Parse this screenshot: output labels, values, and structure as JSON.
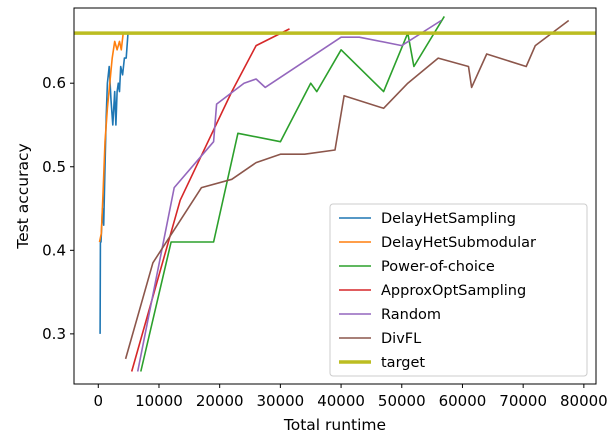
{
  "chart_data": {
    "type": "line",
    "xlabel": "Total runtime",
    "ylabel": "Test accuracy",
    "xlim": [
      -4000,
      82000
    ],
    "ylim": [
      0.24,
      0.69
    ],
    "xticks": [
      0,
      10000,
      20000,
      30000,
      40000,
      50000,
      60000,
      70000,
      80000
    ],
    "xtick_labels": [
      "0",
      "10000",
      "20000",
      "30000",
      "40000",
      "50000",
      "60000",
      "70000",
      "80000"
    ],
    "yticks": [
      0.3,
      0.4,
      0.5,
      0.6
    ],
    "ytick_labels": [
      "0.3",
      "0.4",
      "0.5",
      "0.6"
    ],
    "grid": false,
    "legend_position": "lower-right",
    "series": [
      {
        "name": "DelayHetSampling",
        "color": "#1f77b4",
        "x": [
          300,
          350,
          450,
          700,
          900,
          1100,
          1300,
          1500,
          1800,
          2100,
          2400,
          2700,
          2900,
          3100,
          3300,
          3500,
          3700,
          4000,
          4300,
          4600,
          4900
        ],
        "y": [
          0.3,
          0.41,
          0.41,
          0.45,
          0.43,
          0.5,
          0.56,
          0.6,
          0.62,
          0.58,
          0.55,
          0.59,
          0.55,
          0.59,
          0.6,
          0.59,
          0.62,
          0.61,
          0.63,
          0.63,
          0.66
        ]
      },
      {
        "name": "DelayHetSubmodular",
        "color": "#ff7f0e",
        "x": [
          200,
          500,
          800,
          1100,
          1500,
          1900,
          2300,
          2700,
          3100,
          3500,
          3800,
          4100,
          4500
        ],
        "y": [
          0.41,
          0.42,
          0.47,
          0.53,
          0.57,
          0.6,
          0.63,
          0.65,
          0.64,
          0.65,
          0.64,
          0.66,
          0.66
        ]
      },
      {
        "name": "Power-of-choice",
        "color": "#2ca02c",
        "x": [
          7000,
          12000,
          19000,
          23000,
          30000,
          35000,
          36000,
          40000,
          47000,
          51000,
          52000,
          57000
        ],
        "y": [
          0.255,
          0.41,
          0.41,
          0.54,
          0.53,
          0.6,
          0.59,
          0.64,
          0.59,
          0.66,
          0.62,
          0.68
        ]
      },
      {
        "name": "ApproxOptSampling",
        "color": "#d62728",
        "x": [
          5500,
          13500,
          22000,
          26000,
          31500
        ],
        "y": [
          0.255,
          0.46,
          0.59,
          0.645,
          0.665
        ]
      },
      {
        "name": "Random",
        "color": "#9467bd",
        "x": [
          6500,
          12500,
          19000,
          19500,
          24000,
          26000,
          27500,
          40000,
          43000,
          50000,
          56500
        ],
        "y": [
          0.255,
          0.475,
          0.53,
          0.575,
          0.6,
          0.605,
          0.595,
          0.655,
          0.655,
          0.645,
          0.675
        ]
      },
      {
        "name": "DivFL",
        "color": "#8c564b",
        "x": [
          4500,
          9000,
          17000,
          22000,
          26000,
          30000,
          34000,
          39000,
          40500,
          47000,
          51000,
          56000,
          61000,
          61500,
          64000,
          70500,
          72000,
          77500
        ],
        "y": [
          0.27,
          0.385,
          0.475,
          0.485,
          0.505,
          0.515,
          0.515,
          0.52,
          0.585,
          0.57,
          0.6,
          0.63,
          0.62,
          0.595,
          0.635,
          0.62,
          0.645,
          0.675
        ]
      },
      {
        "name": "target",
        "color": "#bcbd22",
        "x": [
          -4000,
          82000
        ],
        "y": [
          0.66,
          0.66
        ]
      }
    ]
  }
}
